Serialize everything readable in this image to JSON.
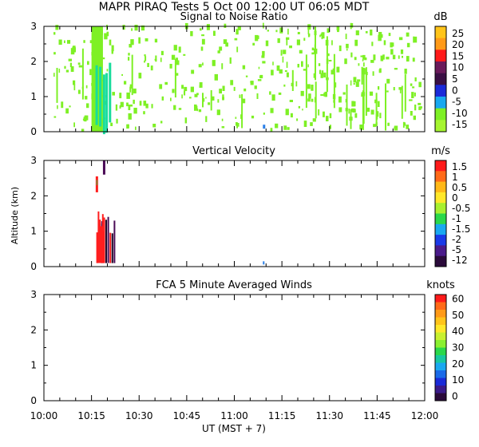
{
  "title": "MAPR PIRAQ Tests   5 Oct 00   12:00 UT   06:05   MDT",
  "y_axis_label": "Altitude (km)",
  "x_axis_label": "UT   (MST + 7)",
  "x_ticks": [
    "10:00",
    "10:15",
    "10:30",
    "10:45",
    "11:00",
    "11:15",
    "11:30",
    "11:45",
    "12:00"
  ],
  "colors": {
    "snr_green": "#7ef025",
    "snr_cyan": "#18dc9c",
    "snr_blue": "#2a7fe8",
    "vel_red": "#ff1e1e",
    "vel_purple": "#4a0a55",
    "vel_dark": "#1a0a2a",
    "vel_blue": "#2a7fe8"
  },
  "chart_data": [
    {
      "type": "heatmap",
      "title": "Signal to Noise Ratio",
      "unit_label": "dB",
      "xlabel": "",
      "ylabel": "",
      "xlim_hours_ut": [
        10.0,
        12.0
      ],
      "ylim_km": [
        0,
        3
      ],
      "y_ticks": [
        "0",
        "1",
        "2",
        "3"
      ],
      "colorbar": {
        "labels": [
          "25",
          "20",
          "15",
          "10",
          "5",
          "0",
          "-5",
          "-10",
          "-15"
        ],
        "colors": [
          "#ffc41a",
          "#ff9a18",
          "#ff1a1a",
          "#6a1a5a",
          "#3a0f44",
          "#1a2ad8",
          "#18a8f0",
          "#7ef025",
          "#a6f530"
        ]
      },
      "regions": [
        {
          "label": "main echo band",
          "t_start": 10.25,
          "t_end": 10.31,
          "alt_min_km": 0.0,
          "alt_max_km": 3.0,
          "value_db": -12
        },
        {
          "label": "core",
          "t_start": 10.27,
          "t_end": 10.3,
          "alt_min_km": 0.1,
          "alt_max_km": 1.6,
          "value_db": -11
        },
        {
          "label": "scattered weak echo",
          "t_start": 10.05,
          "t_end": 11.98,
          "alt_min_km": 0.0,
          "alt_max_km": 3.0,
          "value_db": -15
        },
        {
          "label": "isolated point",
          "t_start": 11.15,
          "t_end": 11.155,
          "alt_min_km": 0.1,
          "alt_max_km": 0.2,
          "value_db": -5
        }
      ]
    },
    {
      "type": "heatmap",
      "title": "Vertical Velocity",
      "unit_label": "m/s",
      "xlabel": "",
      "ylabel": "Altitude (km)",
      "xlim_hours_ut": [
        10.0,
        12.0
      ],
      "ylim_km": [
        0,
        3
      ],
      "y_ticks": [
        "0",
        "1",
        "2",
        "3"
      ],
      "colorbar": {
        "labels": [
          "1.5",
          "1",
          "0.5",
          "0",
          "-0.5",
          "-1",
          "-1.5",
          "-2",
          "-5",
          "-12"
        ],
        "colors": [
          "#ff1a1a",
          "#ff6a18",
          "#ffb818",
          "#ffe82a",
          "#a8f030",
          "#2ad84a",
          "#1aa8f0",
          "#1a3ae8",
          "#4a1a8a",
          "#2a0a3a"
        ]
      },
      "regions": [
        {
          "label": "updraft column",
          "t_start": 10.275,
          "t_end": 10.29,
          "alt_min_km": 0.1,
          "alt_max_km": 1.6,
          "value_ms": 1.5
        },
        {
          "label": "mixed column",
          "t_start": 10.29,
          "t_end": 10.315,
          "alt_min_km": 0.1,
          "alt_max_km": 1.3,
          "value_ms": -5
        },
        {
          "label": "upper streak",
          "t_start": 10.31,
          "t_end": 10.315,
          "alt_min_km": 2.6,
          "alt_max_km": 3.0,
          "value_ms": -5
        },
        {
          "label": "isolated point",
          "t_start": 11.15,
          "t_end": 11.155,
          "alt_min_km": 0.05,
          "alt_max_km": 0.15,
          "value_ms": -1.5
        }
      ]
    },
    {
      "type": "heatmap",
      "title": "FCA 5 Minute Averaged Winds",
      "unit_label": "knots",
      "xlabel": "UT   (MST + 7)",
      "ylabel": "",
      "xlim_hours_ut": [
        10.0,
        12.0
      ],
      "ylim_km": [
        0,
        3
      ],
      "y_ticks": [
        "0",
        "1",
        "2",
        "3"
      ],
      "colorbar": {
        "labels": [
          "60",
          "50",
          "40",
          "30",
          "20",
          "10",
          "0"
        ],
        "colors": [
          "#ff1a1a",
          "#ff6a18",
          "#ff9a18",
          "#ffc41a",
          "#ffe82a",
          "#c8f030",
          "#8af030",
          "#2ad84a",
          "#18c8a0",
          "#1aa8f0",
          "#1a6ae8",
          "#1a2ad8",
          "#3a1a8a",
          "#2a0a3a"
        ]
      },
      "regions": []
    }
  ]
}
